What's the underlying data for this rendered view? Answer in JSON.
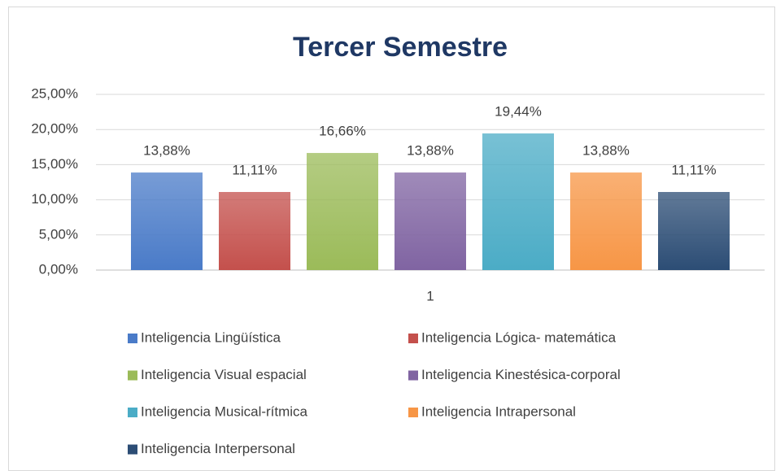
{
  "chart_data": {
    "type": "bar",
    "title": "Tercer Semestre",
    "categories": [
      "1"
    ],
    "series": [
      {
        "name": "Inteligencia Lingüística",
        "color": "#4a7bc8",
        "values": [
          13.88
        ],
        "value_labels": [
          "13,88%"
        ]
      },
      {
        "name": "Inteligencia Lógica- matemática",
        "color": "#c4504c",
        "values": [
          11.11
        ],
        "value_labels": [
          "11,11%"
        ]
      },
      {
        "name": "Inteligencia Visual espacial",
        "color": "#9bbb59",
        "values": [
          16.66
        ],
        "value_labels": [
          "16,66%"
        ]
      },
      {
        "name": "Inteligencia Kinestésica-corporal",
        "color": "#8064a2",
        "values": [
          13.88
        ],
        "value_labels": [
          "13,88%"
        ]
      },
      {
        "name": "Inteligencia Musical-rítmica",
        "color": "#4bacc6",
        "values": [
          19.44
        ],
        "value_labels": [
          "19,44%"
        ]
      },
      {
        "name": "Inteligencia Intrapersonal",
        "color": "#f79646",
        "values": [
          13.88
        ],
        "value_labels": [
          "13,88%"
        ]
      },
      {
        "name": "Inteligencia Interpersonal",
        "color": "#2c4d75",
        "values": [
          11.11
        ],
        "value_labels": [
          "11,11%"
        ]
      }
    ],
    "ylim": [
      0,
      25
    ],
    "yticks": [
      {
        "value": 0,
        "label": "0,00%"
      },
      {
        "value": 5,
        "label": "5,00%"
      },
      {
        "value": 10,
        "label": "10,00%"
      },
      {
        "value": 15,
        "label": "15,00%"
      },
      {
        "value": 20,
        "label": "20,00%"
      },
      {
        "value": 25,
        "label": "25,00%"
      }
    ],
    "grid": true,
    "legend": "bottom"
  }
}
